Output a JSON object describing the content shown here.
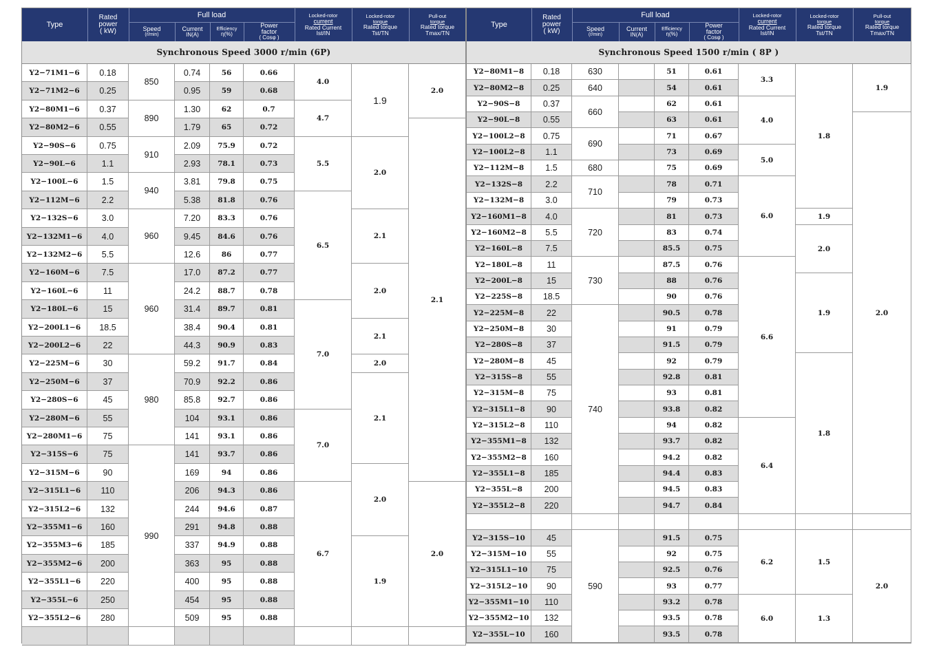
{
  "header": {
    "type": "Type",
    "rated_power": [
      "Rated",
      "power",
      "( kW)"
    ],
    "full_load": "Full load",
    "speed": [
      "Speed",
      "(r/min)"
    ],
    "current": [
      "Current",
      "IN(A)"
    ],
    "efficiency": [
      "Efficiency",
      "η(%)"
    ],
    "power_factor": [
      "Power",
      "factor",
      "( Cosφ )"
    ],
    "locked_current": [
      "Locked-rotor",
      "current",
      "Rated Current",
      "Ist/IN"
    ],
    "locked_torque": [
      "Locked-rotor",
      "torque",
      "Rated torque",
      "Tst/TN"
    ],
    "pullout": [
      "Pull-out",
      "torque",
      "Rated torque",
      "Tmax/TN"
    ]
  },
  "left": {
    "band": "Synchronous Speed  3000 r/min  (6P)",
    "rows": [
      {
        "type": "Y2−71M1−6",
        "power": "0.18",
        "current": "0.74",
        "eff": "56",
        "pf": "0.66"
      },
      {
        "type": "Y2−71M2−6",
        "power": "0.25",
        "current": "0.95",
        "eff": "59",
        "pf": "0.68"
      },
      {
        "type": "Y2−80M1−6",
        "power": "0.37",
        "current": "1.30",
        "eff": "62",
        "pf": "0.7"
      },
      {
        "type": "Y2−80M2−6",
        "power": "0.55",
        "current": "1.79",
        "eff": "65",
        "pf": "0.72"
      },
      {
        "type": "Y2−90S−6",
        "power": "0.75",
        "current": "2.09",
        "eff": "75.9",
        "pf": "0.72"
      },
      {
        "type": "Y2−90L−6",
        "power": "1.1",
        "current": "2.93",
        "eff": "78.1",
        "pf": "0.73"
      },
      {
        "type": "Y2−100L−6",
        "power": "1.5",
        "current": "3.81",
        "eff": "79.8",
        "pf": "0.75"
      },
      {
        "type": "Y2−112M−6",
        "power": "2.2",
        "current": "5.38",
        "eff": "81.8",
        "pf": "0.76"
      },
      {
        "type": "Y2−132S−6",
        "power": "3.0",
        "current": "7.20",
        "eff": "83.3",
        "pf": "0.76"
      },
      {
        "type": "Y2−132M1−6",
        "power": "4.0",
        "current": "9.45",
        "eff": "84.6",
        "pf": "0.76"
      },
      {
        "type": "Y2−132M2−6",
        "power": "5.5",
        "current": "12.6",
        "eff": "86",
        "pf": "0.77"
      },
      {
        "type": "Y2−160M−6",
        "power": "7.5",
        "current": "17.0",
        "eff": "87.2",
        "pf": "0.77"
      },
      {
        "type": "Y2−160L−6",
        "power": "11",
        "current": "24.2",
        "eff": "88.7",
        "pf": "0.78"
      },
      {
        "type": "Y2−180L−6",
        "power": "15",
        "current": "31.4",
        "eff": "89.7",
        "pf": "0.81"
      },
      {
        "type": "Y2−200L1−6",
        "power": "18.5",
        "current": "38.4",
        "eff": "90.4",
        "pf": "0.81"
      },
      {
        "type": "Y2−200L2−6",
        "power": "22",
        "current": "44.3",
        "eff": "90.9",
        "pf": "0.83"
      },
      {
        "type": "Y2−225M−6",
        "power": "30",
        "current": "59.2",
        "eff": "91.7",
        "pf": "0.84"
      },
      {
        "type": "Y2−250M−6",
        "power": "37",
        "current": "70.9",
        "eff": "92.2",
        "pf": "0.86"
      },
      {
        "type": "Y2−280S−6",
        "power": "45",
        "current": "85.8",
        "eff": "92.7",
        "pf": "0.86"
      },
      {
        "type": "Y2−280M−6",
        "power": "55",
        "current": "104",
        "eff": "93.1",
        "pf": "0.86"
      },
      {
        "type": "Y2−280M1−6",
        "power": "75",
        "current": "141",
        "eff": "93.1",
        "pf": "0.86"
      },
      {
        "type": "Y2−315S−6",
        "power": "75",
        "current": "141",
        "eff": "93.7",
        "pf": "0.86"
      },
      {
        "type": "Y2−315M−6",
        "power": "90",
        "current": "169",
        "eff": "94",
        "pf": "0.86"
      },
      {
        "type": "Y2−315L1−6",
        "power": "110",
        "current": "206",
        "eff": "94.3",
        "pf": "0.86"
      },
      {
        "type": "Y2−315L2−6",
        "power": "132",
        "current": "244",
        "eff": "94.6",
        "pf": "0.87"
      },
      {
        "type": "Y2−355M1−6",
        "power": "160",
        "current": "291",
        "eff": "94.8",
        "pf": "0.88"
      },
      {
        "type": "Y2−355M3−6",
        "power": "185",
        "current": "337",
        "eff": "94.9",
        "pf": "0.88"
      },
      {
        "type": "Y2−355M2−6",
        "power": "200",
        "current": "363",
        "eff": "95",
        "pf": "0.88"
      },
      {
        "type": "Y2−355L1−6",
        "power": "220",
        "current": "400",
        "eff": "95",
        "pf": "0.88"
      },
      {
        "type": "Y2−355L−6",
        "power": "250",
        "current": "454",
        "eff": "95",
        "pf": "0.88"
      },
      {
        "type": "Y2−355L2−6",
        "power": "280",
        "current": "509",
        "eff": "95",
        "pf": "0.88"
      },
      {
        "type": "",
        "power": "",
        "current": "",
        "eff": "",
        "pf": ""
      }
    ],
    "speed_groups": [
      [
        "850",
        0,
        2
      ],
      [
        "890",
        2,
        2
      ],
      [
        "910",
        4,
        2
      ],
      [
        "940",
        6,
        2
      ],
      [
        "960",
        8,
        3
      ],
      [
        "960",
        11,
        5
      ],
      [
        "980",
        16,
        5
      ],
      [
        "990",
        21,
        10
      ],
      [
        "",
        31,
        1
      ]
    ],
    "lc_groups": [
      [
        "4.0",
        0,
        2
      ],
      [
        "4.7",
        2,
        2
      ],
      [
        "5.5",
        4,
        3
      ],
      [
        "6.5",
        7,
        6
      ],
      [
        "7.0",
        13,
        6
      ],
      [
        "7.0",
        19,
        4
      ],
      [
        "6.7",
        23,
        8
      ],
      [
        "",
        31,
        1
      ]
    ],
    "lt_groups": [
      [
        "1.9",
        0,
        4
      ],
      [
        "2.0",
        4,
        4
      ],
      [
        "2.1",
        8,
        3
      ],
      [
        "2.0",
        11,
        3
      ],
      [
        "2.1",
        14,
        2
      ],
      [
        "2.0",
        16,
        1
      ],
      [
        "2.1",
        17,
        5
      ],
      [
        "2.0",
        22,
        4
      ],
      [
        "1.9",
        26,
        5
      ],
      [
        "",
        31,
        1
      ]
    ],
    "po_groups": [
      [
        "2.0",
        0,
        3
      ],
      [
        "2.1",
        3,
        20
      ],
      [
        "2.0",
        23,
        8
      ],
      [
        "",
        31,
        1
      ]
    ]
  },
  "right": {
    "band": "Synchronous Speed  1500 r/min ( 8P )",
    "rows": [
      {
        "type": "Y2−80M1−8",
        "power": "0.18",
        "current": "",
        "eff": "51",
        "pf": "0.61"
      },
      {
        "type": "Y2−80M2−8",
        "power": "0.25",
        "current": "",
        "eff": "54",
        "pf": "0.61"
      },
      {
        "type": "Y2−90S−8",
        "power": "0.37",
        "current": "",
        "eff": "62",
        "pf": "0.61"
      },
      {
        "type": "Y2−90L−8",
        "power": "0.55",
        "current": "",
        "eff": "63",
        "pf": "0.61"
      },
      {
        "type": "Y2−100L2−8",
        "power": "0.75",
        "current": "",
        "eff": "71",
        "pf": "0.67"
      },
      {
        "type": "Y2−100L2−8",
        "power": "1.1",
        "current": "",
        "eff": "73",
        "pf": "0.69"
      },
      {
        "type": "Y2−112M−8",
        "power": "1.5",
        "current": "",
        "eff": "75",
        "pf": "0.69"
      },
      {
        "type": "Y2−132S−8",
        "power": "2.2",
        "current": "",
        "eff": "78",
        "pf": "0.71"
      },
      {
        "type": "Y2−132M−8",
        "power": "3.0",
        "current": "",
        "eff": "79",
        "pf": "0.73"
      },
      {
        "type": "Y2−160M1−8",
        "power": "4.0",
        "current": "",
        "eff": "81",
        "pf": "0.73"
      },
      {
        "type": "Y2−160M2−8",
        "power": "5.5",
        "current": "",
        "eff": "83",
        "pf": "0.74"
      },
      {
        "type": "Y2−160L−8",
        "power": "7.5",
        "current": "",
        "eff": "85.5",
        "pf": "0.75"
      },
      {
        "type": "Y2−180L−8",
        "power": "11",
        "current": "",
        "eff": "87.5",
        "pf": "0.76"
      },
      {
        "type": "Y2−200L−8",
        "power": "15",
        "current": "",
        "eff": "88",
        "pf": "0.76"
      },
      {
        "type": "Y2−225S−8",
        "power": "18.5",
        "current": "",
        "eff": "90",
        "pf": "0.76"
      },
      {
        "type": "Y2−225M−8",
        "power": "22",
        "current": "",
        "eff": "90.5",
        "pf": "0.78"
      },
      {
        "type": "Y2−250M−8",
        "power": "30",
        "current": "",
        "eff": "91",
        "pf": "0.79"
      },
      {
        "type": "Y2−280S−8",
        "power": "37",
        "current": "",
        "eff": "91.5",
        "pf": "0.79"
      },
      {
        "type": "Y2−280M−8",
        "power": "45",
        "current": "",
        "eff": "92",
        "pf": "0.79"
      },
      {
        "type": "Y2−315S−8",
        "power": "55",
        "current": "",
        "eff": "92.8",
        "pf": "0.81"
      },
      {
        "type": "Y2−315M−8",
        "power": "75",
        "current": "",
        "eff": "93",
        "pf": "0.81"
      },
      {
        "type": "Y2−315L1−8",
        "power": "90",
        "current": "",
        "eff": "93.8",
        "pf": "0.82"
      },
      {
        "type": "Y2−315L2−8",
        "power": "110",
        "current": "",
        "eff": "94",
        "pf": "0.82"
      },
      {
        "type": "Y2−355M1−8",
        "power": "132",
        "current": "",
        "eff": "93.7",
        "pf": "0.82"
      },
      {
        "type": "Y2−355M2−8",
        "power": "160",
        "current": "",
        "eff": "94.2",
        "pf": "0.82"
      },
      {
        "type": "Y2−355L1−8",
        "power": "185",
        "current": "",
        "eff": "94.4",
        "pf": "0.83"
      },
      {
        "type": "Y2−355L−8",
        "power": "200",
        "current": "",
        "eff": "94.5",
        "pf": "0.83"
      },
      {
        "type": "Y2−355L2−8",
        "power": "220",
        "current": "",
        "eff": "94.7",
        "pf": "0.84"
      },
      {
        "type": "",
        "power": "",
        "current": "",
        "eff": "",
        "pf": ""
      },
      {
        "type": "Y2−315S−10",
        "power": "45",
        "current": "",
        "eff": "91.5",
        "pf": "0.75"
      },
      {
        "type": "Y2−315M−10",
        "power": "55",
        "current": "",
        "eff": "92",
        "pf": "0.75"
      },
      {
        "type": "Y2−315L1−10",
        "power": "75",
        "current": "",
        "eff": "92.5",
        "pf": "0.76"
      },
      {
        "type": "Y2−315L2−10",
        "power": "90",
        "current": "",
        "eff": "93",
        "pf": "0.77"
      },
      {
        "type": "Y2−355M1−10",
        "power": "110",
        "current": "",
        "eff": "93.2",
        "pf": "0.78"
      },
      {
        "type": "Y2−355M2−10",
        "power": "132",
        "current": "",
        "eff": "93.5",
        "pf": "0.78"
      },
      {
        "type": "Y2−355L−10",
        "power": "160",
        "current": "",
        "eff": "93.5",
        "pf": "0.78"
      }
    ],
    "speed_groups": [
      [
        "630",
        0,
        1
      ],
      [
        "640",
        1,
        1
      ],
      [
        "660",
        2,
        2
      ],
      [
        "690",
        4,
        2
      ],
      [
        "680",
        6,
        1
      ],
      [
        "710",
        7,
        2
      ],
      [
        "720",
        9,
        3
      ],
      [
        "730",
        12,
        3
      ],
      [
        "740",
        15,
        13
      ],
      [
        "",
        28,
        1
      ],
      [
        "590",
        29,
        7
      ]
    ],
    "lc_groups": [
      [
        "3.3",
        0,
        2
      ],
      [
        "4.0",
        2,
        3
      ],
      [
        "5.0",
        5,
        2
      ],
      [
        "6.0",
        7,
        5
      ],
      [
        "6.6",
        12,
        10
      ],
      [
        "6.4",
        22,
        6
      ],
      [
        "",
        28,
        1
      ],
      [
        "6.2",
        29,
        4
      ],
      [
        "6.0",
        33,
        3
      ]
    ],
    "lt_groups": [
      [
        "1.8",
        0,
        9
      ],
      [
        "1.9",
        9,
        1
      ],
      [
        "2.0",
        10,
        3
      ],
      [
        "1.9",
        13,
        5
      ],
      [
        "1.8",
        18,
        10
      ],
      [
        "",
        28,
        1
      ],
      [
        "1.5",
        29,
        4
      ],
      [
        "1.3",
        33,
        3
      ]
    ],
    "po_groups": [
      [
        "1.9",
        0,
        3
      ],
      [
        "2.0",
        3,
        25
      ],
      [
        "",
        28,
        1
      ],
      [
        "2.0",
        29,
        7
      ]
    ]
  }
}
